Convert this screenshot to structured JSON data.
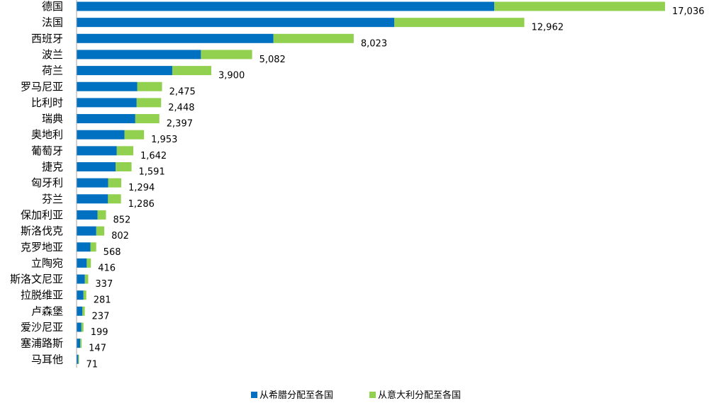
{
  "chart_data": {
    "type": "bar",
    "orientation": "horizontal",
    "stacked": true,
    "title": "",
    "xlabel": "",
    "ylabel": "",
    "grid": false,
    "legend_position": "bottom",
    "categories": [
      "德国",
      "法国",
      "西班牙",
      "波兰",
      "荷兰",
      "罗马尼亚",
      "比利时",
      "瑞典",
      "奥地利",
      "葡萄牙",
      "捷克",
      "匈牙利",
      "芬兰",
      "保加利亚",
      "斯洛伐克",
      "克罗地亚",
      "立陶宛",
      "斯洛文尼亚",
      "拉脱维亚",
      "卢森堡",
      "爱沙尼亚",
      "塞浦路斯",
      "马耳他"
    ],
    "series": [
      {
        "name": "从希腊分配至各国",
        "color": "#0070c0",
        "values": [
          12093,
          9200,
          5700,
          3600,
          2770,
          1755,
          1740,
          1700,
          1385,
          1165,
          1130,
          915,
          910,
          605,
          570,
          400,
          295,
          240,
          200,
          170,
          140,
          105,
          50
        ]
      },
      {
        "name": "从意大利分配至各国",
        "color": "#92d050",
        "values": [
          4943,
          3762,
          2323,
          1482,
          1130,
          720,
          708,
          697,
          568,
          477,
          461,
          379,
          376,
          247,
          232,
          168,
          121,
          97,
          81,
          67,
          59,
          42,
          21
        ]
      }
    ],
    "totals": [
      "17,036",
      "12,962",
      "8,023",
      "5,082",
      "3,900",
      "2,475",
      "2,448",
      "2,397",
      "1,953",
      "1,642",
      "1,591",
      "1,294",
      "1,286",
      "852",
      "802",
      "568",
      "416",
      "337",
      "281",
      "237",
      "199",
      "147",
      "71"
    ],
    "xlim": [
      0,
      18000
    ]
  }
}
